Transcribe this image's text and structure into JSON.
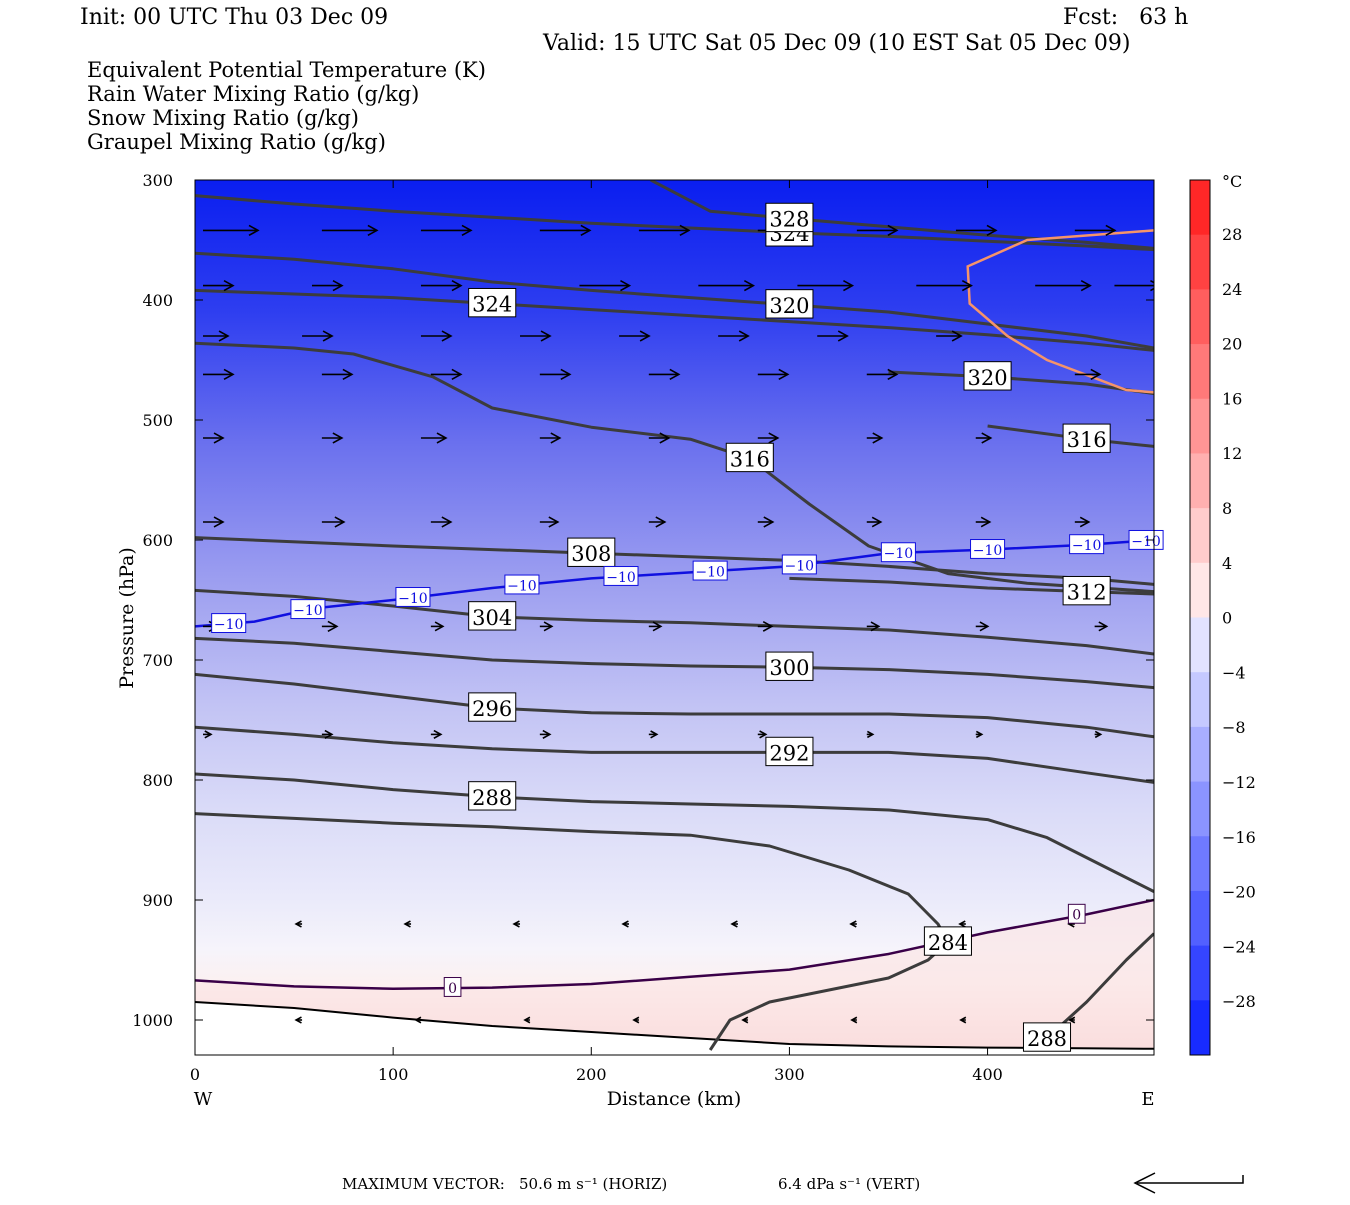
{
  "header": {
    "init": "Init: 00 UTC Thu 03 Dec 09",
    "fcst": "Fcst:   63 h",
    "valid": "Valid: 15 UTC Sat 05 Dec 09 (10 EST Sat 05 Dec 09)"
  },
  "legend": [
    {
      "label": "Equivalent Potential Temperature (K)",
      "color": "#555555"
    },
    {
      "label": "Rain Water Mixing Ratio (g/kg)",
      "color": "#0a7a0a"
    },
    {
      "label": "Snow Mixing Ratio (g/kg)",
      "color": "#f08c5a"
    },
    {
      "label": "Graupel Mixing Ratio (g/kg)",
      "color": "#ee82ee"
    }
  ],
  "chart_data": {
    "type": "cross-section",
    "xlabel": "Distance (km)",
    "ylabel": "Pressure (hPa)",
    "xlim": [
      0,
      484
    ],
    "ylim": [
      1025,
      300
    ],
    "x_ticks": [
      0,
      100,
      200,
      300,
      400
    ],
    "y_ticks": [
      300,
      400,
      500,
      600,
      700,
      800,
      900,
      1000
    ],
    "x_end_labels": {
      "left": "W",
      "right": "E"
    },
    "temperature_colorbar": {
      "unit": "°C",
      "ticks": [
        "28",
        "24",
        "20",
        "16",
        "12",
        "8",
        "4",
        "0",
        "−4",
        "−8",
        "−12",
        "−16",
        "−20",
        "−24",
        "−28"
      ],
      "range": [
        -32,
        32
      ]
    },
    "theta_e_contours": [
      {
        "value": "324",
        "points": [
          [
            0,
            313
          ],
          [
            50,
            320
          ],
          [
            100,
            326
          ],
          [
            150,
            331
          ],
          [
            200,
            336
          ],
          [
            250,
            340
          ],
          [
            300,
            344
          ],
          [
            350,
            347
          ],
          [
            400,
            351
          ],
          [
            450,
            355
          ],
          [
            484,
            358
          ]
        ]
      },
      {
        "value": "328",
        "points": [
          [
            230,
            300
          ],
          [
            260,
            326
          ],
          [
            300,
            332
          ],
          [
            350,
            339
          ],
          [
            400,
            346
          ],
          [
            450,
            352
          ],
          [
            484,
            357
          ]
        ]
      },
      {
        "value": "320",
        "points": [
          [
            0,
            361
          ],
          [
            50,
            366
          ],
          [
            100,
            374
          ],
          [
            150,
            385
          ],
          [
            200,
            392
          ],
          [
            250,
            398
          ],
          [
            300,
            404
          ],
          [
            350,
            410
          ],
          [
            400,
            420
          ],
          [
            450,
            430
          ],
          [
            484,
            440
          ]
        ]
      },
      {
        "value": "324",
        "points": [
          [
            0,
            392
          ],
          [
            50,
            395
          ],
          [
            100,
            398
          ],
          [
            150,
            403
          ],
          [
            200,
            408
          ],
          [
            250,
            413
          ],
          [
            300,
            418
          ],
          [
            350,
            423
          ],
          [
            400,
            429
          ],
          [
            450,
            436
          ],
          [
            484,
            442
          ]
        ]
      },
      {
        "value": "316",
        "points": [
          [
            0,
            436
          ],
          [
            50,
            440
          ],
          [
            80,
            445
          ],
          [
            120,
            464
          ],
          [
            150,
            490
          ],
          [
            200,
            506
          ],
          [
            250,
            516
          ],
          [
            280,
            532
          ],
          [
            310,
            570
          ],
          [
            340,
            605
          ],
          [
            380,
            628
          ],
          [
            420,
            636
          ],
          [
            484,
            643
          ]
        ]
      },
      {
        "value": "320",
        "points": [
          [
            350,
            460
          ],
          [
            400,
            464
          ],
          [
            450,
            470
          ],
          [
            484,
            478
          ]
        ]
      },
      {
        "value": "316",
        "points": [
          [
            400,
            505
          ],
          [
            450,
            516
          ],
          [
            484,
            522
          ]
        ]
      },
      {
        "value": "308",
        "points": [
          [
            0,
            598
          ],
          [
            100,
            605
          ],
          [
            200,
            611
          ],
          [
            300,
            617
          ],
          [
            350,
            622
          ],
          [
            400,
            628
          ],
          [
            450,
            632
          ],
          [
            484,
            637
          ]
        ]
      },
      {
        "value": "312",
        "points": [
          [
            300,
            632
          ],
          [
            350,
            635
          ],
          [
            400,
            640
          ],
          [
            450,
            643
          ],
          [
            484,
            645
          ]
        ]
      },
      {
        "value": "304",
        "points": [
          [
            0,
            642
          ],
          [
            50,
            647
          ],
          [
            100,
            655
          ],
          [
            150,
            664
          ],
          [
            200,
            667
          ],
          [
            250,
            669
          ],
          [
            300,
            672
          ],
          [
            350,
            675
          ],
          [
            400,
            681
          ],
          [
            450,
            688
          ],
          [
            484,
            695
          ]
        ]
      },
      {
        "value": "300",
        "points": [
          [
            0,
            682
          ],
          [
            50,
            686
          ],
          [
            100,
            693
          ],
          [
            150,
            700
          ],
          [
            200,
            703
          ],
          [
            250,
            705
          ],
          [
            300,
            706
          ],
          [
            350,
            708
          ],
          [
            400,
            712
          ],
          [
            450,
            718
          ],
          [
            484,
            723
          ]
        ]
      },
      {
        "value": "296",
        "points": [
          [
            0,
            712
          ],
          [
            50,
            720
          ],
          [
            100,
            730
          ],
          [
            150,
            740
          ],
          [
            200,
            744
          ],
          [
            250,
            745
          ],
          [
            300,
            745
          ],
          [
            350,
            745
          ],
          [
            400,
            748
          ],
          [
            450,
            756
          ],
          [
            484,
            764
          ]
        ]
      },
      {
        "value": "292",
        "points": [
          [
            0,
            756
          ],
          [
            50,
            762
          ],
          [
            100,
            769
          ],
          [
            150,
            774
          ],
          [
            200,
            777
          ],
          [
            250,
            777
          ],
          [
            300,
            777
          ],
          [
            350,
            777
          ],
          [
            400,
            782
          ],
          [
            450,
            794
          ],
          [
            484,
            802
          ]
        ]
      },
      {
        "value": "288",
        "points": [
          [
            0,
            795
          ],
          [
            50,
            800
          ],
          [
            100,
            808
          ],
          [
            150,
            814
          ],
          [
            200,
            818
          ],
          [
            250,
            820
          ],
          [
            300,
            822
          ],
          [
            350,
            825
          ],
          [
            400,
            833
          ],
          [
            430,
            848
          ],
          [
            460,
            873
          ],
          [
            484,
            893
          ]
        ]
      },
      {
        "value": "284",
        "points": [
          [
            0,
            828
          ],
          [
            50,
            832
          ],
          [
            100,
            836
          ],
          [
            150,
            839
          ],
          [
            200,
            843
          ],
          [
            250,
            846
          ],
          [
            290,
            855
          ],
          [
            330,
            875
          ],
          [
            360,
            895
          ],
          [
            375,
            920
          ],
          [
            380,
            935
          ],
          [
            370,
            950
          ],
          [
            350,
            965
          ],
          [
            320,
            975
          ],
          [
            290,
            985
          ],
          [
            270,
            1000
          ],
          [
            260,
            1025
          ]
        ]
      },
      {
        "value": "288",
        "points": [
          [
            420,
            1025
          ],
          [
            430,
            1015
          ],
          [
            450,
            985
          ],
          [
            470,
            950
          ],
          [
            484,
            928
          ]
        ]
      }
    ],
    "temperature_isotherms": [
      {
        "value": "0",
        "points": [
          [
            0,
            967
          ],
          [
            50,
            972
          ],
          [
            100,
            974
          ],
          [
            150,
            973
          ],
          [
            200,
            970
          ],
          [
            250,
            964
          ],
          [
            300,
            958
          ],
          [
            350,
            945
          ],
          [
            400,
            927
          ],
          [
            450,
            912
          ],
          [
            484,
            900
          ]
        ]
      },
      {
        "value": "−10",
        "points": [
          [
            0,
            672
          ],
          [
            30,
            668
          ],
          [
            60,
            657
          ],
          [
            100,
            650
          ],
          [
            150,
            640
          ],
          [
            200,
            632
          ],
          [
            250,
            627
          ],
          [
            300,
            622
          ],
          [
            350,
            611
          ],
          [
            400,
            608
          ],
          [
            450,
            604
          ],
          [
            484,
            600
          ]
        ]
      }
    ],
    "snow_mixing_ratio_contour": {
      "points": [
        [
          484,
          342
        ],
        [
          420,
          350
        ],
        [
          390,
          372
        ],
        [
          391,
          403
        ],
        [
          410,
          430
        ],
        [
          430,
          450
        ],
        [
          470,
          475
        ],
        [
          484,
          477
        ]
      ]
    },
    "terrain_line": {
      "points": [
        [
          0,
          985
        ],
        [
          50,
          990
        ],
        [
          100,
          998
        ],
        [
          150,
          1005
        ],
        [
          200,
          1010
        ],
        [
          250,
          1015
        ],
        [
          300,
          1020
        ],
        [
          350,
          1022
        ],
        [
          400,
          1023
        ],
        [
          484,
          1024
        ]
      ]
    },
    "wind_vectors": [
      {
        "row": 342,
        "items": [
          [
            0,
            55
          ],
          [
            60,
            55
          ],
          [
            110,
            50
          ],
          [
            170,
            50
          ],
          [
            220,
            50
          ],
          [
            280,
            40
          ],
          [
            330,
            40
          ],
          [
            380,
            40
          ],
          [
            440,
            40
          ]
        ]
      },
      {
        "row": 388,
        "items": [
          [
            0,
            30
          ],
          [
            55,
            30
          ],
          [
            110,
            40
          ],
          [
            190,
            50
          ],
          [
            250,
            55
          ],
          [
            300,
            55
          ],
          [
            360,
            55
          ],
          [
            420,
            55
          ],
          [
            460,
            45
          ]
        ]
      },
      {
        "row": 430,
        "items": [
          [
            0,
            25
          ],
          [
            50,
            30
          ],
          [
            110,
            30
          ],
          [
            160,
            30
          ],
          [
            210,
            30
          ],
          [
            260,
            30
          ],
          [
            310,
            30
          ],
          [
            370,
            25
          ]
        ]
      },
      {
        "row": 462,
        "items": [
          [
            0,
            30
          ],
          [
            60,
            30
          ],
          [
            115,
            30
          ],
          [
            170,
            30
          ],
          [
            225,
            30
          ],
          [
            280,
            30
          ],
          [
            335,
            30
          ],
          [
            390,
            30
          ],
          [
            440,
            25
          ]
        ]
      },
      {
        "row": 515,
        "items": [
          [
            0,
            20
          ],
          [
            60,
            20
          ],
          [
            110,
            25
          ],
          [
            170,
            20
          ],
          [
            225,
            20
          ],
          [
            280,
            20
          ],
          [
            335,
            15
          ],
          [
            390,
            15
          ],
          [
            440,
            15
          ]
        ]
      },
      {
        "row": 585,
        "items": [
          [
            0,
            20
          ],
          [
            60,
            22
          ],
          [
            115,
            20
          ],
          [
            170,
            18
          ],
          [
            225,
            16
          ],
          [
            280,
            15
          ],
          [
            335,
            14
          ],
          [
            390,
            14
          ],
          [
            440,
            14
          ]
        ]
      },
      {
        "row": 672,
        "items": [
          [
            0,
            15
          ],
          [
            60,
            15
          ],
          [
            115,
            12
          ],
          [
            170,
            12
          ],
          [
            225,
            12
          ],
          [
            280,
            14
          ],
          [
            335,
            12
          ],
          [
            390,
            12
          ],
          [
            450,
            12
          ]
        ]
      },
      {
        "row": 762,
        "items": [
          [
            0,
            8
          ],
          [
            60,
            10
          ],
          [
            115,
            10
          ],
          [
            170,
            10
          ],
          [
            225,
            8
          ],
          [
            280,
            8
          ],
          [
            335,
            6
          ],
          [
            390,
            6
          ],
          [
            450,
            6
          ]
        ]
      },
      {
        "row": 920,
        "items": [
          [
            50,
            -6
          ],
          [
            105,
            -6
          ],
          [
            160,
            -6
          ],
          [
            215,
            -6
          ],
          [
            270,
            -6
          ],
          [
            330,
            -6
          ],
          [
            385,
            -6
          ],
          [
            440,
            -6
          ]
        ]
      },
      {
        "row": 1000,
        "items": [
          [
            50,
            -6
          ],
          [
            110,
            -5
          ],
          [
            165,
            -5
          ],
          [
            220,
            -5
          ],
          [
            275,
            -5
          ],
          [
            330,
            -5
          ],
          [
            385,
            -5
          ],
          [
            440,
            -5
          ]
        ]
      }
    ]
  },
  "footer": {
    "max_vector_label": "MAXIMUM VECTOR:",
    "horiz": "50.6 m s⁻¹ (HORIZ)",
    "vert": "6.4 dPa s⁻¹ (VERT)"
  }
}
